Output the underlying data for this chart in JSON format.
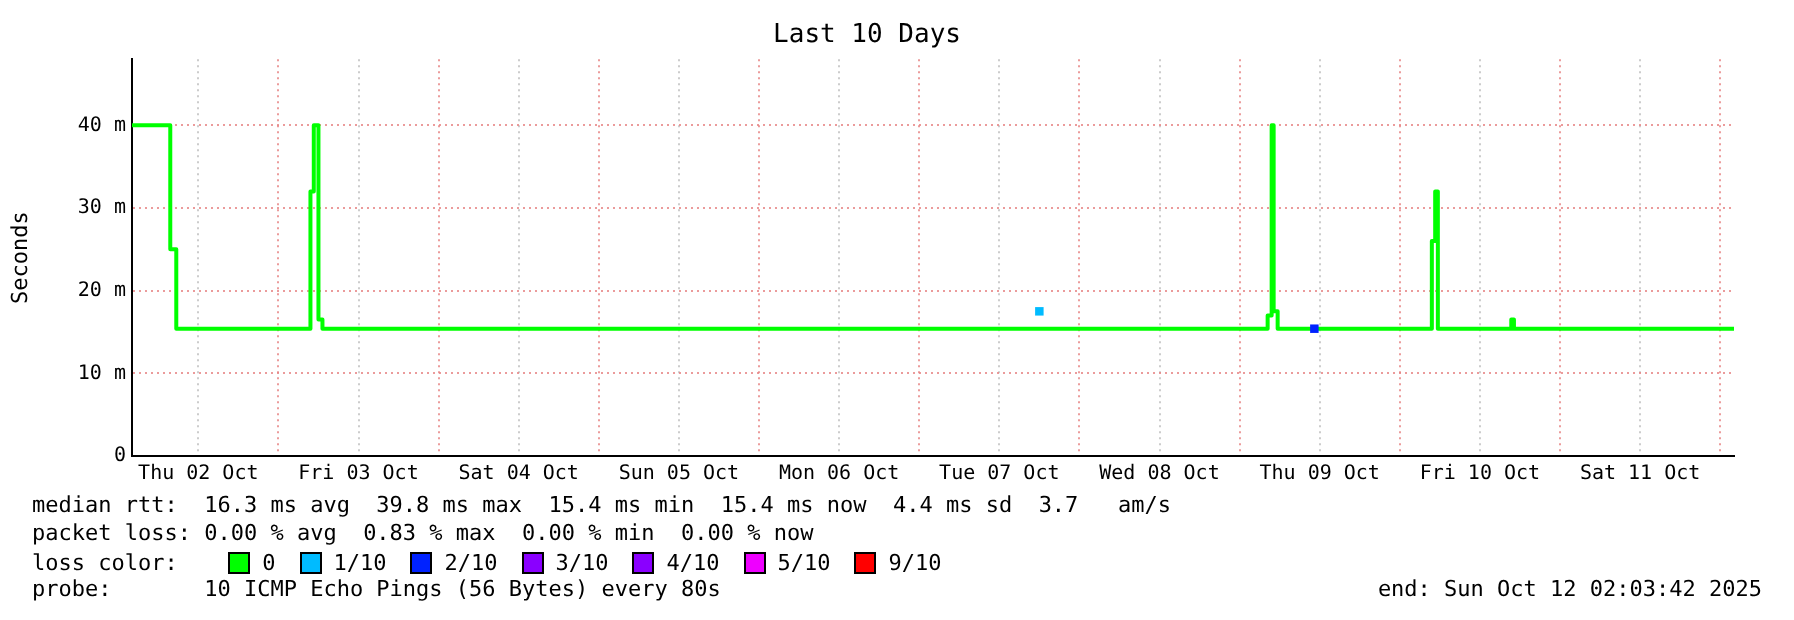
{
  "chart_data": {
    "type": "step",
    "title": "Last 10 Days",
    "ylabel": "Seconds",
    "legend_title": "loss color:",
    "legend": "bottom",
    "grid": true,
    "xlim": [
      "2025-10-02T02:04",
      "2025-10-12T02:04"
    ],
    "xticks": [
      {
        "value": "2025-10-02T12:00",
        "label": "Thu 02 Oct"
      },
      {
        "value": "2025-10-03T00:00",
        "label": null
      },
      {
        "value": "2025-10-03T12:00",
        "label": "Fri 03 Oct"
      },
      {
        "value": "2025-10-04T00:00",
        "label": null
      },
      {
        "value": "2025-10-04T12:00",
        "label": "Sat 04 Oct"
      },
      {
        "value": "2025-10-05T00:00",
        "label": null
      },
      {
        "value": "2025-10-05T12:00",
        "label": "Sun 05 Oct"
      },
      {
        "value": "2025-10-06T00:00",
        "label": null
      },
      {
        "value": "2025-10-06T12:00",
        "label": "Mon 06 Oct"
      },
      {
        "value": "2025-10-07T00:00",
        "label": null
      },
      {
        "value": "2025-10-07T12:00",
        "label": "Tue 07 Oct"
      },
      {
        "value": "2025-10-08T00:00",
        "label": null
      },
      {
        "value": "2025-10-08T12:00",
        "label": "Wed 08 Oct"
      },
      {
        "value": "2025-10-09T00:00",
        "label": null
      },
      {
        "value": "2025-10-09T12:00",
        "label": "Thu 09 Oct"
      },
      {
        "value": "2025-10-10T00:00",
        "label": null
      },
      {
        "value": "2025-10-10T12:00",
        "label": "Fri 10 Oct"
      },
      {
        "value": "2025-10-11T00:00",
        "label": null
      },
      {
        "value": "2025-10-11T12:00",
        "label": "Sat 11 Oct"
      },
      {
        "value": "2025-10-12T00:00",
        "label": null
      }
    ],
    "ylim": [
      0,
      48
    ],
    "yticks": [
      0,
      {
        "value": 10,
        "label": "10 m"
      },
      {
        "value": 20,
        "label": "20 m"
      },
      {
        "value": 30,
        "label": "30 m"
      },
      {
        "value": 40,
        "label": "40 m"
      }
    ],
    "series": [
      {
        "name": "0",
        "color": "#00ff00",
        "x": [
          "2025-10-02T02:04",
          "2025-10-02T07:48",
          "2025-10-02T08:42",
          "2025-10-03T04:48",
          "2025-10-03T05:18",
          "2025-10-03T06:00",
          "2025-10-03T06:36",
          "2025-10-09T04:12",
          "2025-10-09T04:48",
          "2025-10-09T05:06",
          "2025-10-09T05:42",
          "2025-10-10T04:48",
          "2025-10-10T05:18",
          "2025-10-10T05:42",
          "2025-10-10T16:42",
          "2025-10-10T17:06",
          "2025-10-12T02:04"
        ],
        "values": [
          40,
          25,
          15.4,
          32,
          40,
          16.5,
          15.4,
          17,
          40,
          17.5,
          15.4,
          26,
          32,
          15.4,
          16.5,
          15.4,
          15.4
        ]
      },
      {
        "name": "1/10",
        "color": "#00bbff",
        "marker": "square",
        "x": [
          "2025-10-07T18:00"
        ],
        "values": [
          17.5
        ]
      },
      {
        "name": "2/10",
        "color": "#0022ff",
        "marker": "square",
        "x": [
          "2025-10-09T11:12"
        ],
        "values": [
          15.4
        ]
      },
      {
        "name": "3/10",
        "color": "#8a00ff"
      },
      {
        "name": "4/10",
        "color": "#8a00ff"
      },
      {
        "name": "5/10",
        "color": "#ee00ff"
      },
      {
        "name": "9/10",
        "color": "#ff0000"
      }
    ],
    "annotations": [
      "median rtt:  16.3 ms avg  39.8 ms max  15.4 ms min  15.4 ms now  4.4 ms sd  3.7   am/s",
      "packet loss: 0.00 % avg  0.83 % max  0.00 % min  0.00 % now",
      "probe:       10 ICMP Echo Pings (56 Bytes) every 80s",
      "end: Sun Oct 12 02:03:42 2025"
    ]
  }
}
